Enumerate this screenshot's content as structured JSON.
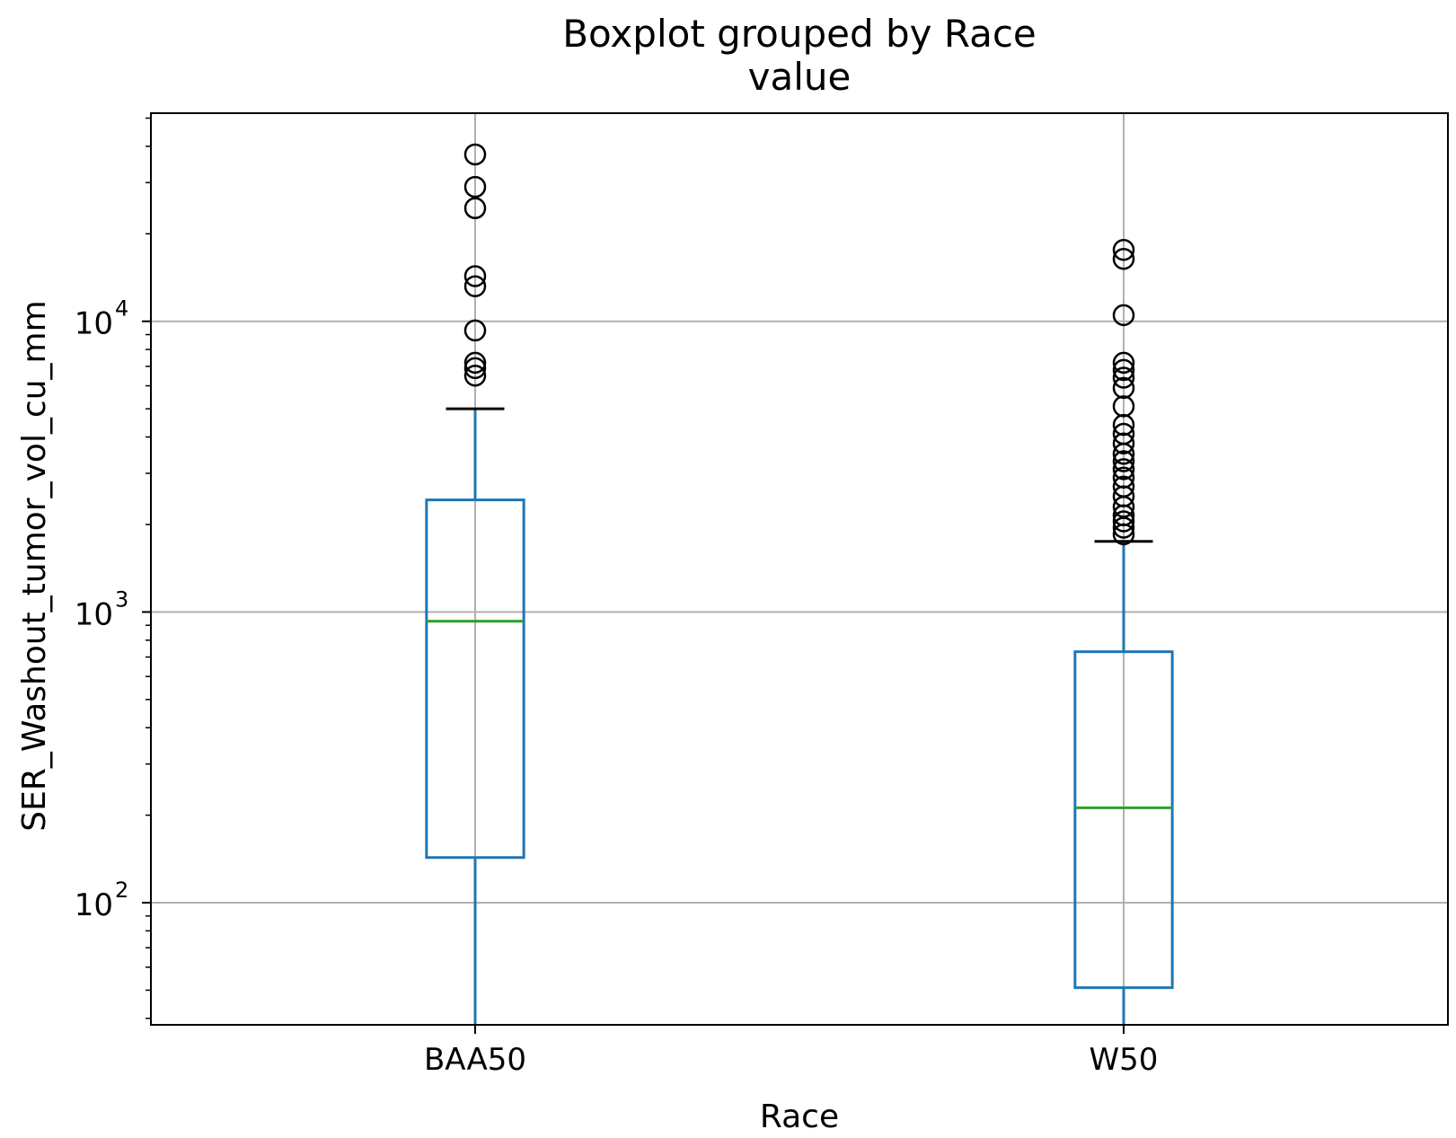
{
  "chart_data": {
    "type": "boxplot",
    "title": "Boxplot grouped by Race",
    "subtitle": "value",
    "xlabel": "Race",
    "ylabel": "SER_Washout_tumor_vol_cu_mm",
    "yscale": "log",
    "ylim": [
      38,
      52000
    ],
    "yticks": [
      {
        "value": 100,
        "base": "10",
        "exp": "2"
      },
      {
        "value": 1000,
        "base": "10",
        "exp": "3"
      },
      {
        "value": 10000,
        "base": "10",
        "exp": "4"
      }
    ],
    "grid": true,
    "categories": [
      "BAA50",
      "W50"
    ],
    "series": [
      {
        "category": "BAA50",
        "whisker_low": 38,
        "q1": 143,
        "median": 930,
        "q3": 2430,
        "whisker_high": 5000,
        "outliers": [
          37500,
          29000,
          24500,
          14300,
          13200,
          9300,
          7200,
          6900,
          6500
        ]
      },
      {
        "category": "W50",
        "whisker_low": 38,
        "q1": 51,
        "median": 212,
        "q3": 730,
        "whisker_high": 1750,
        "outliers": [
          17600,
          16400,
          10500,
          7200,
          6800,
          6400,
          5900,
          5100,
          4400,
          4100,
          3800,
          3500,
          3300,
          3100,
          2900,
          2700,
          2500,
          2300,
          2150,
          2050,
          1950,
          1850
        ]
      }
    ],
    "colors": {
      "box": "#1f77b4",
      "median": "#2ca02c",
      "whisker_cap": "#000000",
      "outlier": "#000000",
      "grid": "#b0b0b0"
    }
  }
}
